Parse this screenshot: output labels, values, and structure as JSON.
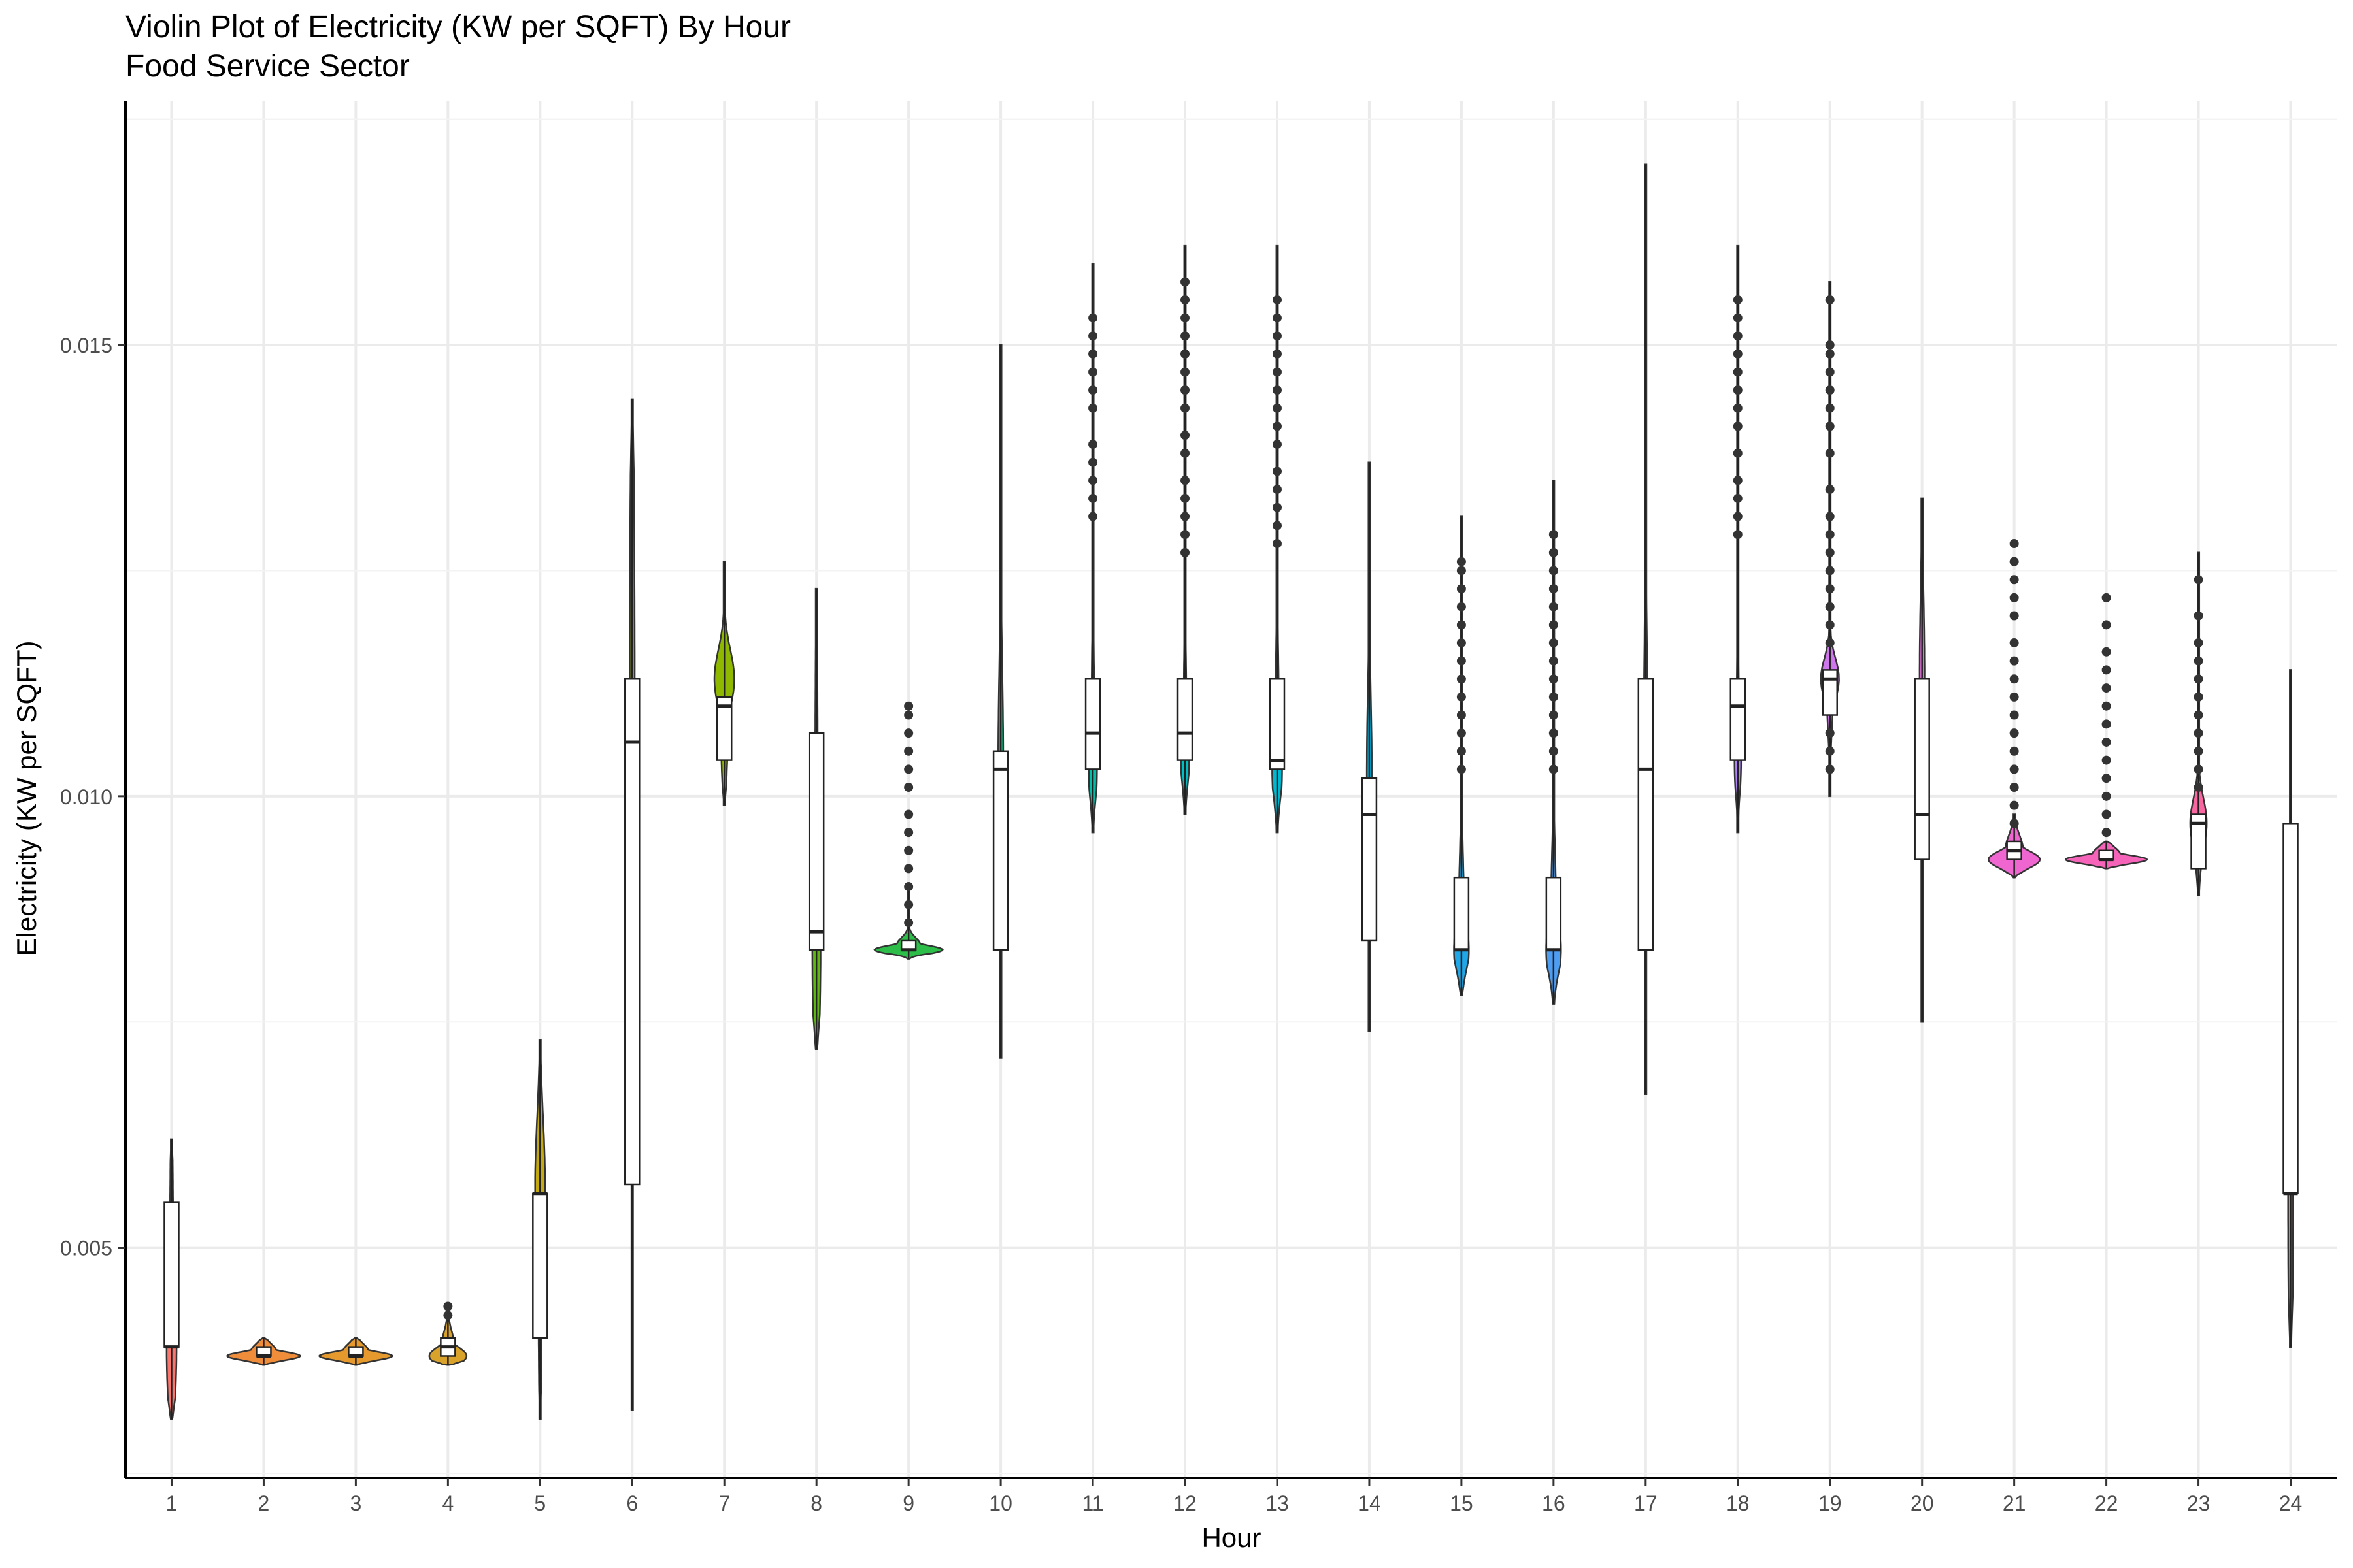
{
  "chart_data": {
    "type": "violin",
    "title": "Violin Plot of Electricity (KW per SQFT) By Hour",
    "subtitle": "Food Service Sector",
    "xlabel": "Hour",
    "ylabel": "Electricity (KW per SQFT)",
    "ylim": [
      0.00245,
      0.0177
    ],
    "yticks": [
      0.005,
      0.01,
      0.015
    ],
    "ytick_labels": [
      "0.005",
      "0.010",
      "0.015"
    ],
    "grid": true,
    "legend": "none",
    "categories": [
      "1",
      "2",
      "3",
      "4",
      "5",
      "6",
      "7",
      "8",
      "9",
      "10",
      "11",
      "12",
      "13",
      "14",
      "15",
      "16",
      "17",
      "18",
      "19",
      "20",
      "21",
      "22",
      "23",
      "24"
    ],
    "groups": [
      {
        "x": "1",
        "color": "#F8766D",
        "min": 0.0031,
        "max": 0.0062,
        "q1": 0.0039,
        "median": 0.0039,
        "q3": 0.0055,
        "mode": 0.0039,
        "violin_width": 0.12,
        "outliers": []
      },
      {
        "x": "2",
        "color": "#F08D3B",
        "min": 0.0037,
        "max": 0.004,
        "q1": 0.0038,
        "median": 0.0038,
        "q3": 0.0039,
        "mode": 0.0038,
        "violin_width": 0.88,
        "outliers": []
      },
      {
        "x": "3",
        "color": "#E69A2E",
        "min": 0.0037,
        "max": 0.004,
        "q1": 0.0038,
        "median": 0.0038,
        "q3": 0.0039,
        "mode": 0.0038,
        "violin_width": 0.88,
        "outliers": []
      },
      {
        "x": "4",
        "color": "#D9A22A",
        "min": 0.0037,
        "max": 0.0043,
        "q1": 0.0038,
        "median": 0.0039,
        "q3": 0.004,
        "mode": 0.0038,
        "violin_width": 0.45,
        "outliers": [
          0.00425,
          0.00435
        ]
      },
      {
        "x": "5",
        "color": "#C4A90F",
        "min": 0.0031,
        "max": 0.0073,
        "q1": 0.004,
        "median": 0.0056,
        "q3": 0.0056,
        "mode": 0.0057,
        "violin_width": 0.12,
        "outliers": []
      },
      {
        "x": "6",
        "color": "#A8B400",
        "min": 0.0032,
        "max": 0.0144,
        "q1": 0.0057,
        "median": 0.0106,
        "q3": 0.0113,
        "mode": 0.0113,
        "violin_width": 0.06,
        "outliers": []
      },
      {
        "x": "7",
        "color": "#8FB800",
        "min": 0.0099,
        "max": 0.0126,
        "q1": 0.0104,
        "median": 0.011,
        "q3": 0.0111,
        "mode": 0.0113,
        "violin_width": 0.24,
        "outliers": []
      },
      {
        "x": "8",
        "color": "#5EBA10",
        "min": 0.0072,
        "max": 0.0123,
        "q1": 0.0083,
        "median": 0.0085,
        "q3": 0.0107,
        "mode": 0.0083,
        "violin_width": 0.1,
        "outliers": []
      },
      {
        "x": "9",
        "color": "#2DBE4A",
        "min": 0.0082,
        "max": 0.009,
        "q1": 0.0083,
        "median": 0.0083,
        "q3": 0.0084,
        "mode": 0.0083,
        "violin_width": 0.82,
        "outliers": [
          0.0086,
          0.0088,
          0.009,
          0.0092,
          0.0094,
          0.0096,
          0.0098,
          0.0101,
          0.0103,
          0.0105,
          0.0107,
          0.0109,
          0.011
        ]
      },
      {
        "x": "10",
        "color": "#00BE7D",
        "min": 0.0071,
        "max": 0.015,
        "q1": 0.0083,
        "median": 0.0103,
        "q3": 0.0105,
        "mode": 0.0104,
        "violin_width": 0.06,
        "outliers": []
      },
      {
        "x": "11",
        "color": "#00BFA8",
        "min": 0.0096,
        "max": 0.0159,
        "q1": 0.0103,
        "median": 0.0107,
        "q3": 0.0113,
        "mode": 0.0103,
        "violin_width": 0.1,
        "outliers": [
          0.0131,
          0.0133,
          0.0135,
          0.0137,
          0.0139,
          0.0143,
          0.0145,
          0.0147,
          0.0149,
          0.0151,
          0.0153
        ]
      },
      {
        "x": "12",
        "color": "#00BFC4",
        "min": 0.0098,
        "max": 0.0161,
        "q1": 0.0104,
        "median": 0.0107,
        "q3": 0.0113,
        "mode": 0.0104,
        "violin_width": 0.1,
        "outliers": [
          0.0127,
          0.0129,
          0.0131,
          0.0133,
          0.0135,
          0.0138,
          0.014,
          0.0143,
          0.0145,
          0.0147,
          0.0149,
          0.0151,
          0.0153,
          0.0155,
          0.0157
        ]
      },
      {
        "x": "13",
        "color": "#00B8CF",
        "min": 0.0096,
        "max": 0.0161,
        "q1": 0.0103,
        "median": 0.0104,
        "q3": 0.0113,
        "mode": 0.0103,
        "violin_width": 0.12,
        "outliers": [
          0.0128,
          0.013,
          0.0132,
          0.0134,
          0.0136,
          0.0139,
          0.0141,
          0.0143,
          0.0145,
          0.0147,
          0.0149,
          0.0151,
          0.0153,
          0.0155
        ]
      },
      {
        "x": "14",
        "color": "#00AFDC",
        "min": 0.0074,
        "max": 0.0137,
        "q1": 0.0084,
        "median": 0.0098,
        "q3": 0.0102,
        "mode": 0.0103,
        "violin_width": 0.06,
        "outliers": []
      },
      {
        "x": "15",
        "color": "#1FA7E8",
        "min": 0.0078,
        "max": 0.0131,
        "q1": 0.0083,
        "median": 0.0083,
        "q3": 0.0091,
        "mode": 0.0083,
        "violin_width": 0.18,
        "outliers": [
          0.0103,
          0.0105,
          0.0107,
          0.0109,
          0.0111,
          0.0113,
          0.0115,
          0.0117,
          0.0119,
          0.0121,
          0.0123,
          0.0125,
          0.0126
        ]
      },
      {
        "x": "16",
        "color": "#4D9DF2",
        "min": 0.0077,
        "max": 0.0135,
        "q1": 0.0083,
        "median": 0.0083,
        "q3": 0.0091,
        "mode": 0.0083,
        "violin_width": 0.18,
        "outliers": [
          0.0103,
          0.0105,
          0.0107,
          0.0109,
          0.0111,
          0.0113,
          0.0115,
          0.0117,
          0.0119,
          0.0121,
          0.0123,
          0.0125,
          0.0127,
          0.0129
        ]
      },
      {
        "x": "17",
        "color": "#8F91F8",
        "min": 0.0067,
        "max": 0.017,
        "q1": 0.0083,
        "median": 0.0103,
        "q3": 0.0113,
        "mode": 0.0103,
        "violin_width": 0.05,
        "outliers": []
      },
      {
        "x": "18",
        "color": "#B084F8",
        "min": 0.0096,
        "max": 0.0161,
        "q1": 0.0104,
        "median": 0.011,
        "q3": 0.0113,
        "mode": 0.0104,
        "violin_width": 0.08,
        "outliers": [
          0.0129,
          0.0131,
          0.0133,
          0.0135,
          0.0138,
          0.0141,
          0.0143,
          0.0145,
          0.0147,
          0.0149,
          0.0151,
          0.0153,
          0.0155
        ]
      },
      {
        "x": "19",
        "color": "#CF78EE",
        "min": 0.01,
        "max": 0.0157,
        "q1": 0.0109,
        "median": 0.0113,
        "q3": 0.0114,
        "mode": 0.0113,
        "violin_width": 0.22,
        "outliers": [
          0.0103,
          0.0105,
          0.0107,
          0.0117,
          0.0119,
          0.0121,
          0.0123,
          0.0125,
          0.0127,
          0.0129,
          0.0131,
          0.0134,
          0.0138,
          0.0141,
          0.0143,
          0.0145,
          0.0147,
          0.0149,
          0.015,
          0.0155
        ]
      },
      {
        "x": "20",
        "color": "#E66FDE",
        "min": 0.0075,
        "max": 0.0133,
        "q1": 0.0093,
        "median": 0.0098,
        "q3": 0.0113,
        "mode": 0.0113,
        "violin_width": 0.06,
        "outliers": []
      },
      {
        "x": "21",
        "color": "#F066D1",
        "min": 0.0091,
        "max": 0.0098,
        "q1": 0.0093,
        "median": 0.0094,
        "q3": 0.0095,
        "mode": 0.0093,
        "violin_width": 0.62,
        "outliers": [
          0.0097,
          0.0099,
          0.0101,
          0.0103,
          0.0105,
          0.0107,
          0.0109,
          0.0111,
          0.0113,
          0.0115,
          0.0117,
          0.012,
          0.0122,
          0.0124,
          0.0126,
          0.0128
        ]
      },
      {
        "x": "22",
        "color": "#F564B8",
        "min": 0.0092,
        "max": 0.0095,
        "q1": 0.0093,
        "median": 0.0093,
        "q3": 0.0094,
        "mode": 0.0093,
        "violin_width": 0.98,
        "outliers": [
          0.0096,
          0.0098,
          0.01,
          0.0102,
          0.0104,
          0.0106,
          0.0108,
          0.011,
          0.0112,
          0.0114,
          0.0116,
          0.0119,
          0.0122
        ]
      },
      {
        "x": "23",
        "color": "#F8679F",
        "min": 0.0089,
        "max": 0.0127,
        "q1": 0.0092,
        "median": 0.0097,
        "q3": 0.0098,
        "mode": 0.0097,
        "violin_width": 0.2,
        "outliers": [
          0.0101,
          0.0103,
          0.0105,
          0.0107,
          0.0109,
          0.0111,
          0.0113,
          0.0115,
          0.0117,
          0.012,
          0.0124
        ]
      },
      {
        "x": "24",
        "color": "#FB6D86",
        "min": 0.0039,
        "max": 0.0114,
        "q1": 0.0056,
        "median": 0.0056,
        "q3": 0.0097,
        "mode": 0.0055,
        "violin_width": 0.06,
        "outliers": []
      }
    ]
  }
}
